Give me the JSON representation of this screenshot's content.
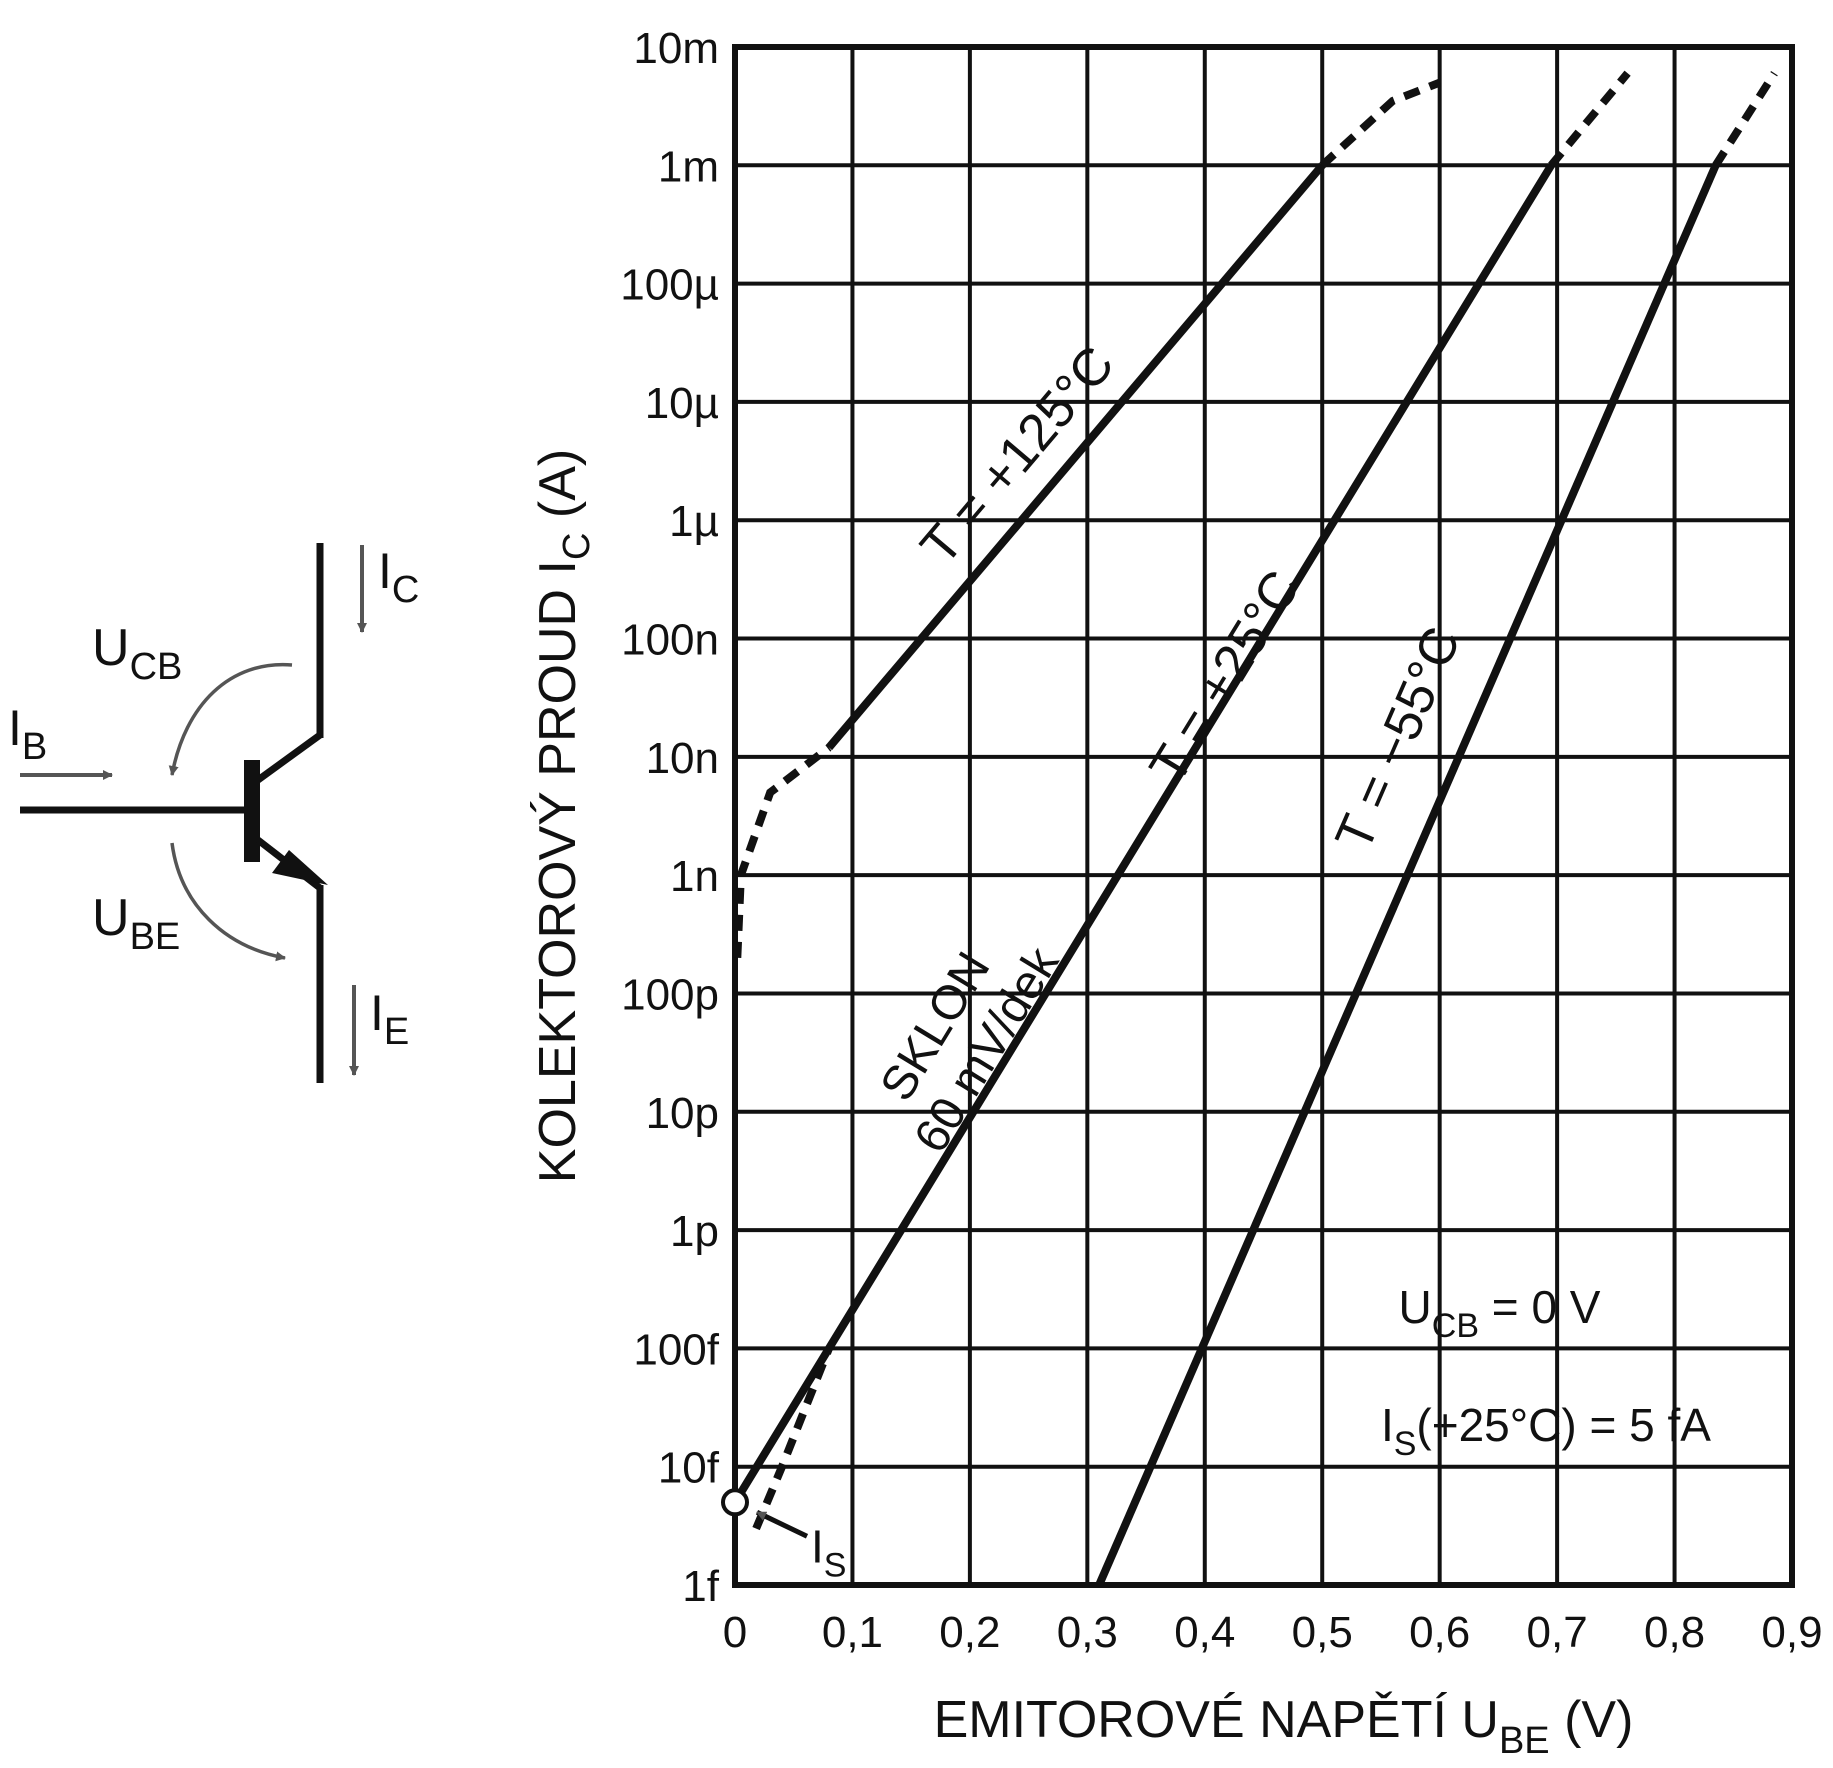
{
  "chart_data": {
    "type": "line",
    "y_scale": "log",
    "xlabel_main": "EMITOROVÉ NAPĚTÍ  U",
    "xlabel_sub": "BE",
    "xlabel_unit": "(V)",
    "ylabel_main": "KOLEKTOROVÝ PROUD  I",
    "ylabel_sub": "C",
    "ylabel_unit": "(A)",
    "x_ticks": [
      "0",
      "0,1",
      "0,2",
      "0,3",
      "0,4",
      "0,5",
      "0,6",
      "0,7",
      "0,8",
      "0,9"
    ],
    "y_ticks": [
      "1f",
      "10f",
      "100f",
      "1p",
      "10p",
      "100p",
      "1n",
      "10n",
      "100n",
      "1µ",
      "10µ",
      "100µ",
      "1m",
      "10m"
    ],
    "xlim": [
      0,
      0.9
    ],
    "ylim": [
      1e-15,
      0.01
    ],
    "grid": true,
    "series": [
      {
        "name": "T = +125°C",
        "points": [
          [
            0.08,
            1.2e-08
          ],
          [
            0.5,
            0.001
          ]
        ],
        "dashed_points": [
          [
            0.002,
            2e-10
          ],
          [
            0.005,
            1e-09
          ],
          [
            0.03,
            5e-09
          ],
          [
            0.08,
            1.2e-08
          ]
        ],
        "dashed_top": [
          [
            0.5,
            0.001
          ],
          [
            0.56,
            0.0035
          ],
          [
            0.6,
            0.005
          ]
        ]
      },
      {
        "name": "T = +25°C",
        "points": [
          [
            0.0,
            5e-15
          ],
          [
            0.695,
            0.001
          ]
        ],
        "dashed_points": [
          [
            0.018,
            3e-15
          ],
          [
            0.04,
            1e-14
          ],
          [
            0.08,
            1e-13
          ]
        ],
        "dashed_top": [
          [
            0.695,
            0.001
          ],
          [
            0.76,
            0.006
          ]
        ]
      },
      {
        "name": "T = −55°C",
        "points": [
          [
            0.31,
            1e-15
          ],
          [
            0.835,
            0.001
          ]
        ],
        "dashed_top": [
          [
            0.835,
            0.001
          ],
          [
            0.885,
            0.006
          ]
        ]
      }
    ],
    "annotations": {
      "slope_line1": "SKLON",
      "slope_line2": "60 mV/dek",
      "ucb_main": "U",
      "ucb_sub": "CB",
      "ucb_rest": " = 0 V",
      "is_main": "I",
      "is_sub": "S",
      "is_rest": "(+25°C) = 5 fA",
      "is_point_main": "I",
      "is_point_sub": "S",
      "is_point": [
        0.0,
        5e-15
      ]
    }
  },
  "schematic": {
    "ic_main": "I",
    "ic_sub": "C",
    "ie_main": "I",
    "ie_sub": "E",
    "ib_main": "I",
    "ib_sub": "B",
    "ucb_main": "U",
    "ucb_sub": "CB",
    "ube_main": "U",
    "ube_sub": "BE"
  }
}
